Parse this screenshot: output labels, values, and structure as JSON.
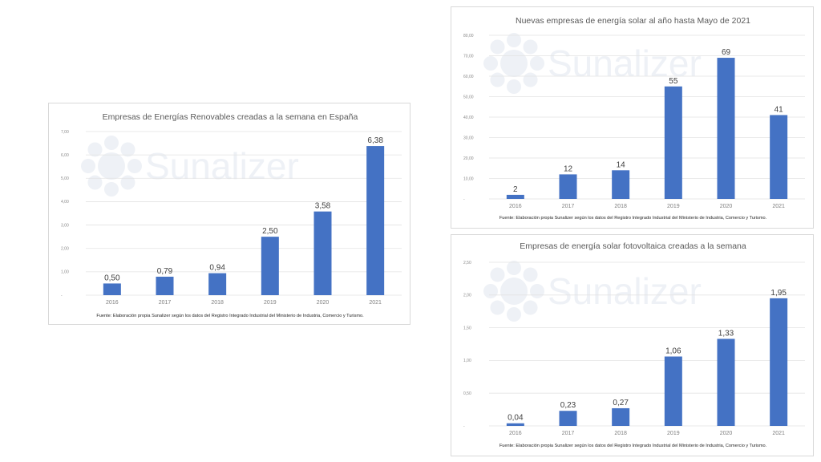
{
  "watermark": "Sunalizer",
  "colors": {
    "bar": "#4472c4",
    "grid": "#e3e3e3",
    "title": "#595959"
  },
  "chart_data": [
    {
      "type": "bar",
      "title": "Empresas de Energías Renovables creadas a la semana en España",
      "categories": [
        "2016",
        "2017",
        "2018",
        "2019",
        "2020",
        "2021"
      ],
      "values": [
        0.5,
        0.79,
        0.94,
        2.5,
        3.58,
        6.38
      ],
      "data_labels": [
        "0,50",
        "0,79",
        "0,94",
        "2,50",
        "3,58",
        "6,38"
      ],
      "ylim": [
        0,
        7
      ],
      "yticks": [
        "-",
        "1,00",
        "2,00",
        "3,00",
        "4,00",
        "5,00",
        "6,00",
        "7,00"
      ],
      "grid": true,
      "source": "Fuente: Elaboración propia Sunalizer según los datos del Registro Integrado Industrial del Ministerio de Industria, Comercio y Turismo."
    },
    {
      "type": "bar",
      "title": "Nuevas empresas de energía solar al año hasta Mayo de 2021",
      "categories": [
        "2016",
        "2017",
        "2018",
        "2019",
        "2020",
        "2021"
      ],
      "values": [
        2,
        12,
        14,
        55,
        69,
        41
      ],
      "data_labels": [
        "2",
        "12",
        "14",
        "55",
        "69",
        "41"
      ],
      "ylim": [
        0,
        80
      ],
      "yticks": [
        "-",
        "10,00",
        "20,00",
        "30,00",
        "40,00",
        "50,00",
        "60,00",
        "70,00",
        "80,00"
      ],
      "grid": true,
      "source": "Fuente: Elaboración propia Sunalizer según los datos del Registro Integrado Industrial del Ministerio de Industria, Comercio y Turismo."
    },
    {
      "type": "bar",
      "title": "Empresas de energía solar fotovoltaica creadas a la semana",
      "categories": [
        "2016",
        "2017",
        "2018",
        "2019",
        "2020",
        "2021"
      ],
      "values": [
        0.04,
        0.23,
        0.27,
        1.06,
        1.33,
        1.95
      ],
      "data_labels": [
        "0,04",
        "0,23",
        "0,27",
        "1,06",
        "1,33",
        "1,95"
      ],
      "ylim": [
        0,
        2.5
      ],
      "yticks": [
        "-",
        "0,50",
        "1,00",
        "1,50",
        "2,00",
        "2,50"
      ],
      "grid": true,
      "source": "Fuente: Elaboración propia Sunalizer según los datos del Registro Integrado Industrial del Ministerio de Industria, Comercio y Turismo."
    }
  ]
}
